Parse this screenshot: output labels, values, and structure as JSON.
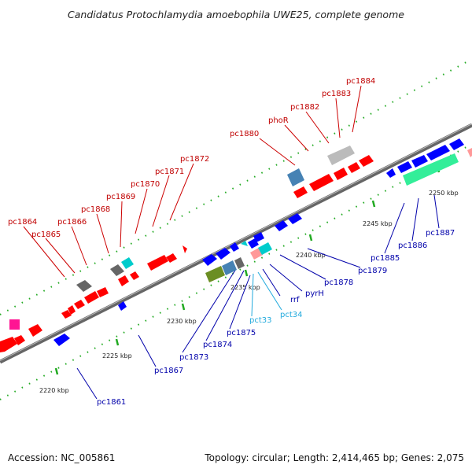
{
  "title": "Candidatus Protochlamydia amoebophila UWE25, complete genome",
  "accession": "Accession: NC_005861",
  "summary": "Topology: circular; Length: 2,414,465 bp; Genes: 2,075",
  "colors": {
    "forward": "#ff0000",
    "reverse": "#0000ff",
    "forward_label": "#c00000",
    "reverse_label": "#0000aa",
    "rna_label": "#22aadd",
    "backbone": "#888888",
    "dots": "#22aa22"
  },
  "ticks": [
    {
      "label": "2220 kbp"
    },
    {
      "label": "2225 kbp"
    },
    {
      "label": "2230 kbp"
    },
    {
      "label": "2235 kbp"
    },
    {
      "label": "2240 kbp"
    },
    {
      "label": "2245 kbp"
    },
    {
      "label": "2250 kbp"
    }
  ],
  "forward_labels": [
    "pc1864",
    "pc1865",
    "pc1866",
    "pc1868",
    "pc1869",
    "pc1870",
    "pc1871",
    "pc1872",
    "pc1880",
    "phoR",
    "pc1882",
    "pc1883",
    "pc1884"
  ],
  "reverse_labels": [
    "pc1861",
    "pc1867",
    "pc1873",
    "pc1874",
    "pc1875",
    "pct33",
    "pct34",
    "rrf",
    "pyrH",
    "pc1878",
    "pc1879",
    "pc1885",
    "pc1886",
    "pc1887"
  ]
}
